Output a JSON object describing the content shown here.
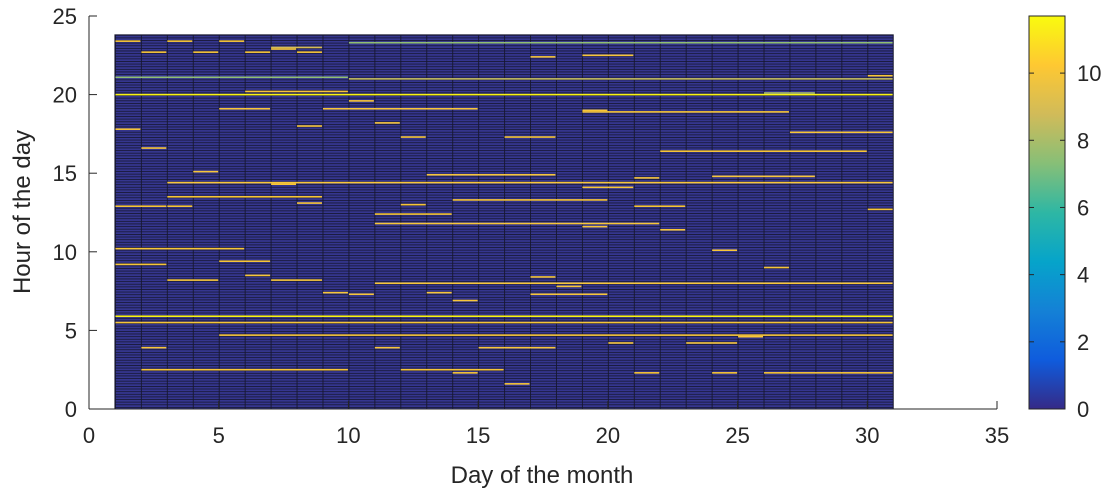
{
  "chart_data": {
    "type": "heatmap",
    "title": "",
    "xlabel": "Day of the month",
    "ylabel": "Hour of the day",
    "xlim": [
      0,
      35
    ],
    "ylim": [
      0,
      25
    ],
    "xticks": [
      0,
      5,
      10,
      15,
      20,
      25,
      30,
      35
    ],
    "yticks": [
      0,
      5,
      10,
      15,
      20,
      25
    ],
    "cells": {
      "x_range": [
        1,
        31
      ],
      "y_range": [
        0,
        23.8
      ],
      "row_step": 0.1667,
      "background_value": 0
    },
    "colorbar": {
      "colormap": "parula",
      "range": [
        0,
        11.7
      ],
      "ticks": [
        0,
        2,
        4,
        6,
        8,
        10
      ],
      "stops": [
        "#352a87",
        "#0f5cdd",
        "#1481d6",
        "#06a4ca",
        "#2eb7a4",
        "#87bf77",
        "#d1bb59",
        "#fec832",
        "#f9fb0e"
      ]
    },
    "bright_bars": [
      {
        "d1": 1,
        "d2": 2,
        "h": 23.4,
        "v": 10
      },
      {
        "d1": 2,
        "d2": 3,
        "h": 22.7,
        "v": 10
      },
      {
        "d1": 3,
        "d2": 4,
        "h": 23.4,
        "v": 10
      },
      {
        "d1": 4,
        "d2": 5,
        "h": 22.7,
        "v": 10
      },
      {
        "d1": 5,
        "d2": 6,
        "h": 23.4,
        "v": 10
      },
      {
        "d1": 6,
        "d2": 7,
        "h": 22.7,
        "v": 10
      },
      {
        "d1": 7,
        "d2": 8,
        "h": 22.9,
        "v": 10
      },
      {
        "d1": 8,
        "d2": 9,
        "h": 22.7,
        "v": 10
      },
      {
        "d1": 7,
        "d2": 9,
        "h": 23.0,
        "v": 9
      },
      {
        "d1": 1,
        "d2": 10,
        "h": 21.1,
        "v": 7.5
      },
      {
        "d1": 10,
        "d2": 31,
        "h": 21.0,
        "v": 8.5
      },
      {
        "d1": 10,
        "d2": 31,
        "h": 23.3,
        "v": 7.5
      },
      {
        "d1": 1,
        "d2": 31,
        "h": 20.0,
        "v": 11.5
      },
      {
        "d1": 6,
        "d2": 10,
        "h": 20.2,
        "v": 10
      },
      {
        "d1": 30,
        "d2": 31,
        "h": 21.2,
        "v": 10
      },
      {
        "d1": 26,
        "d2": 28,
        "h": 20.1,
        "v": 8
      },
      {
        "d1": 10,
        "d2": 11,
        "h": 19.6,
        "v": 10
      },
      {
        "d1": 5,
        "d2": 7,
        "h": 19.1,
        "v": 10
      },
      {
        "d1": 9,
        "d2": 15,
        "h": 19.1,
        "v": 10
      },
      {
        "d1": 19,
        "d2": 27,
        "h": 18.9,
        "v": 10
      },
      {
        "d1": 19,
        "d2": 20,
        "h": 19.0,
        "v": 10
      },
      {
        "d1": 19,
        "d2": 21,
        "h": 22.5,
        "v": 10
      },
      {
        "d1": 17,
        "d2": 18,
        "h": 22.4,
        "v": 10
      },
      {
        "d1": 11,
        "d2": 12,
        "h": 18.2,
        "v": 10
      },
      {
        "d1": 8,
        "d2": 9,
        "h": 18.0,
        "v": 10
      },
      {
        "d1": 1,
        "d2": 2,
        "h": 17.8,
        "v": 10
      },
      {
        "d1": 12,
        "d2": 13,
        "h": 17.3,
        "v": 10
      },
      {
        "d1": 16,
        "d2": 18,
        "h": 17.3,
        "v": 10
      },
      {
        "d1": 27,
        "d2": 31,
        "h": 17.6,
        "v": 10
      },
      {
        "d1": 2,
        "d2": 3,
        "h": 16.6,
        "v": 10
      },
      {
        "d1": 22,
        "d2": 30,
        "h": 16.4,
        "v": 10
      },
      {
        "d1": 4,
        "d2": 5,
        "h": 15.1,
        "v": 10
      },
      {
        "d1": 13,
        "d2": 18,
        "h": 14.9,
        "v": 10
      },
      {
        "d1": 24,
        "d2": 28,
        "h": 14.8,
        "v": 10
      },
      {
        "d1": 3,
        "d2": 31,
        "h": 14.4,
        "v": 10
      },
      {
        "d1": 7,
        "d2": 8,
        "h": 14.3,
        "v": 10
      },
      {
        "d1": 19,
        "d2": 21,
        "h": 14.1,
        "v": 10
      },
      {
        "d1": 21,
        "d2": 22,
        "h": 14.7,
        "v": 10
      },
      {
        "d1": 3,
        "d2": 9,
        "h": 13.5,
        "v": 10
      },
      {
        "d1": 8,
        "d2": 9,
        "h": 13.1,
        "v": 10
      },
      {
        "d1": 1,
        "d2": 3,
        "h": 12.9,
        "v": 10
      },
      {
        "d1": 3,
        "d2": 4,
        "h": 12.9,
        "v": 10
      },
      {
        "d1": 14,
        "d2": 20,
        "h": 13.3,
        "v": 10
      },
      {
        "d1": 21,
        "d2": 23,
        "h": 12.9,
        "v": 10
      },
      {
        "d1": 12,
        "d2": 13,
        "h": 13.0,
        "v": 10
      },
      {
        "d1": 11,
        "d2": 14,
        "h": 12.4,
        "v": 10
      },
      {
        "d1": 11,
        "d2": 22,
        "h": 11.8,
        "v": 10
      },
      {
        "d1": 19,
        "d2": 20,
        "h": 11.6,
        "v": 10
      },
      {
        "d1": 22,
        "d2": 23,
        "h": 11.4,
        "v": 10
      },
      {
        "d1": 30,
        "d2": 31,
        "h": 12.7,
        "v": 10
      },
      {
        "d1": 1,
        "d2": 6,
        "h": 10.2,
        "v": 10
      },
      {
        "d1": 1,
        "d2": 3,
        "h": 9.2,
        "v": 10
      },
      {
        "d1": 5,
        "d2": 7,
        "h": 9.4,
        "v": 10
      },
      {
        "d1": 24,
        "d2": 25,
        "h": 10.1,
        "v": 10
      },
      {
        "d1": 26,
        "d2": 27,
        "h": 9.0,
        "v": 10
      },
      {
        "d1": 3,
        "d2": 5,
        "h": 8.2,
        "v": 10
      },
      {
        "d1": 7,
        "d2": 9,
        "h": 8.2,
        "v": 10
      },
      {
        "d1": 6,
        "d2": 7,
        "h": 8.5,
        "v": 10
      },
      {
        "d1": 11,
        "d2": 31,
        "h": 8.0,
        "v": 10
      },
      {
        "d1": 17,
        "d2": 18,
        "h": 8.4,
        "v": 10
      },
      {
        "d1": 18,
        "d2": 19,
        "h": 7.8,
        "v": 10
      },
      {
        "d1": 9,
        "d2": 10,
        "h": 7.4,
        "v": 10
      },
      {
        "d1": 10,
        "d2": 11,
        "h": 7.3,
        "v": 10
      },
      {
        "d1": 17,
        "d2": 20,
        "h": 7.3,
        "v": 10
      },
      {
        "d1": 13,
        "d2": 14,
        "h": 7.4,
        "v": 10
      },
      {
        "d1": 14,
        "d2": 15,
        "h": 6.9,
        "v": 10
      },
      {
        "d1": 1,
        "d2": 31,
        "h": 5.9,
        "v": 11.5
      },
      {
        "d1": 1,
        "d2": 31,
        "h": 5.5,
        "v": 10
      },
      {
        "d1": 5,
        "d2": 31,
        "h": 4.7,
        "v": 10
      },
      {
        "d1": 11,
        "d2": 12,
        "h": 3.9,
        "v": 10
      },
      {
        "d1": 2,
        "d2": 3,
        "h": 3.9,
        "v": 10
      },
      {
        "d1": 15,
        "d2": 18,
        "h": 3.9,
        "v": 10
      },
      {
        "d1": 20,
        "d2": 21,
        "h": 4.2,
        "v": 10
      },
      {
        "d1": 23,
        "d2": 25,
        "h": 4.2,
        "v": 10
      },
      {
        "d1": 25,
        "d2": 26,
        "h": 4.6,
        "v": 10
      },
      {
        "d1": 2,
        "d2": 10,
        "h": 2.5,
        "v": 10
      },
      {
        "d1": 12,
        "d2": 16,
        "h": 2.5,
        "v": 10
      },
      {
        "d1": 14,
        "d2": 15,
        "h": 2.3,
        "v": 10
      },
      {
        "d1": 21,
        "d2": 22,
        "h": 2.3,
        "v": 10
      },
      {
        "d1": 24,
        "d2": 25,
        "h": 2.3,
        "v": 10
      },
      {
        "d1": 26,
        "d2": 31,
        "h": 2.3,
        "v": 10
      },
      {
        "d1": 16,
        "d2": 17,
        "h": 1.6,
        "v": 10
      }
    ]
  }
}
